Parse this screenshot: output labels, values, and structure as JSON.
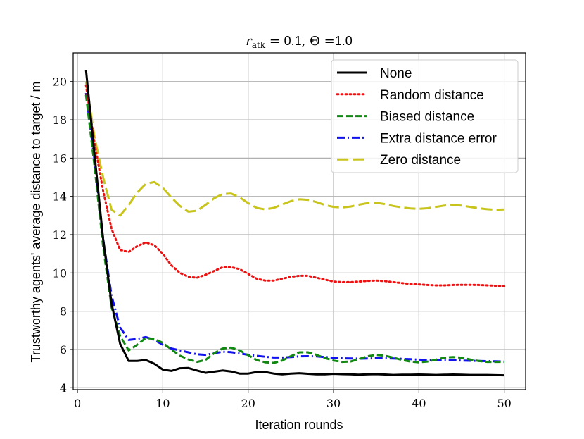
{
  "chart_data": {
    "type": "line",
    "title": {
      "prefix": "r",
      "subscript": "atk",
      "eq1": " = ",
      "val1": "0.1",
      "sep": ", ",
      "theta": "Θ",
      "eq2": " =",
      "val2": "1.0"
    },
    "xlabel": "Iteration rounds",
    "ylabel": "Trustworthy agents' average distance to target / m",
    "xlim": [
      -0.5,
      52.5
    ],
    "ylim": [
      3.9,
      21.5
    ],
    "xticks": [
      0,
      10,
      20,
      30,
      40,
      50
    ],
    "yticks": [
      4,
      6,
      8,
      10,
      12,
      14,
      16,
      18,
      20
    ],
    "grid": true,
    "legend_position": "top-right",
    "x": [
      1,
      2,
      3,
      4,
      5,
      6,
      7,
      8,
      9,
      10,
      11,
      12,
      13,
      14,
      15,
      16,
      17,
      18,
      19,
      20,
      21,
      22,
      23,
      24,
      25,
      26,
      27,
      28,
      29,
      30,
      31,
      32,
      33,
      34,
      35,
      36,
      37,
      38,
      39,
      40,
      41,
      42,
      43,
      44,
      45,
      46,
      47,
      48,
      49,
      50
    ],
    "series": [
      {
        "name": "None",
        "color": "#000000",
        "style": "solid",
        "values": [
          20.6,
          16.2,
          11.8,
          8.4,
          6.3,
          5.4,
          5.4,
          5.45,
          5.25,
          4.95,
          4.88,
          5.02,
          5.03,
          4.9,
          4.78,
          4.84,
          4.9,
          4.85,
          4.74,
          4.74,
          4.82,
          4.82,
          4.74,
          4.7,
          4.74,
          4.76,
          4.73,
          4.7,
          4.7,
          4.73,
          4.71,
          4.7,
          4.68,
          4.7,
          4.71,
          4.69,
          4.67,
          4.68,
          4.68,
          4.69,
          4.68,
          4.67,
          4.68,
          4.69,
          4.68,
          4.67,
          4.67,
          4.67,
          4.66,
          4.65
        ]
      },
      {
        "name": "Random distance",
        "color": "#ee1111",
        "style": "dotted",
        "values": [
          19.8,
          16.8,
          14.3,
          12.3,
          11.2,
          11.1,
          11.4,
          11.6,
          11.45,
          11.0,
          10.4,
          10.0,
          9.8,
          9.75,
          9.9,
          10.1,
          10.3,
          10.3,
          10.2,
          9.95,
          9.7,
          9.6,
          9.6,
          9.7,
          9.8,
          9.85,
          9.85,
          9.75,
          9.65,
          9.55,
          9.52,
          9.52,
          9.55,
          9.58,
          9.6,
          9.57,
          9.52,
          9.47,
          9.42,
          9.4,
          9.37,
          9.35,
          9.35,
          9.37,
          9.38,
          9.38,
          9.37,
          9.35,
          9.33,
          9.3
        ]
      },
      {
        "name": "Biased distance",
        "color": "#118811",
        "style": "dashed",
        "values": [
          19.3,
          15.6,
          11.4,
          8.2,
          6.7,
          5.95,
          6.25,
          6.6,
          6.55,
          6.35,
          6.0,
          5.68,
          5.48,
          5.35,
          5.45,
          5.8,
          6.05,
          6.1,
          5.95,
          5.7,
          5.45,
          5.33,
          5.3,
          5.42,
          5.65,
          5.85,
          5.85,
          5.72,
          5.55,
          5.42,
          5.35,
          5.37,
          5.5,
          5.65,
          5.72,
          5.68,
          5.57,
          5.45,
          5.37,
          5.33,
          5.37,
          5.47,
          5.57,
          5.6,
          5.57,
          5.48,
          5.4,
          5.35,
          5.35,
          5.35
        ]
      },
      {
        "name": "Extra distance error",
        "color": "#1111ee",
        "style": "dashdot",
        "values": [
          19.4,
          15.9,
          11.8,
          8.8,
          7.15,
          6.5,
          6.55,
          6.65,
          6.5,
          6.25,
          6.05,
          5.95,
          5.85,
          5.75,
          5.72,
          5.8,
          5.88,
          5.86,
          5.8,
          5.72,
          5.67,
          5.62,
          5.58,
          5.58,
          5.6,
          5.64,
          5.65,
          5.64,
          5.6,
          5.57,
          5.54,
          5.53,
          5.52,
          5.53,
          5.54,
          5.54,
          5.53,
          5.51,
          5.49,
          5.47,
          5.45,
          5.44,
          5.43,
          5.43,
          5.42,
          5.41,
          5.4,
          5.39,
          5.38,
          5.37
        ]
      },
      {
        "name": "Zero distance",
        "color": "#c8c41c",
        "style": "longdash",
        "values": [
          20.0,
          17.1,
          15.0,
          13.3,
          13.0,
          13.55,
          14.2,
          14.65,
          14.75,
          14.45,
          13.95,
          13.5,
          13.2,
          13.25,
          13.55,
          13.9,
          14.12,
          14.15,
          13.95,
          13.65,
          13.4,
          13.32,
          13.4,
          13.58,
          13.75,
          13.85,
          13.82,
          13.7,
          13.55,
          13.45,
          13.42,
          13.47,
          13.57,
          13.65,
          13.67,
          13.6,
          13.5,
          13.42,
          13.37,
          13.35,
          13.38,
          13.45,
          13.52,
          13.55,
          13.52,
          13.45,
          13.38,
          13.33,
          13.3,
          13.32
        ]
      }
    ]
  }
}
